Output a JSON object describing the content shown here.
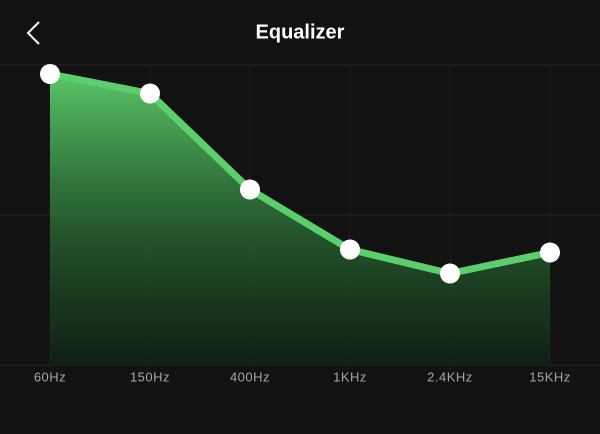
{
  "header": {
    "title": "Equalizer"
  },
  "chart_data": {
    "type": "line",
    "categories": [
      "60Hz",
      "150Hz",
      "400Hz",
      "1KHz",
      "2.4KHz",
      "15KHz"
    ],
    "values": [
      0.94,
      0.81,
      0.17,
      -0.23,
      -0.39,
      -0.25
    ],
    "color": "#5ccf6c",
    "ylim": [
      -1,
      1
    ],
    "yticks": [
      -1,
      0,
      1
    ],
    "grid": true
  }
}
